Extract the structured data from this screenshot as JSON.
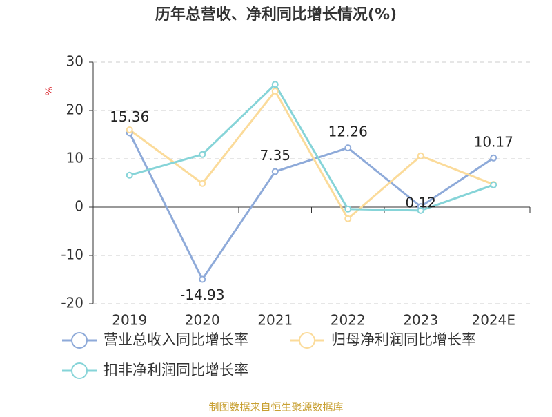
{
  "chart_data": {
    "type": "line",
    "title": "历年总营收、净利同比增长情况(%)",
    "y_label": "%",
    "categories": [
      "2019",
      "2020",
      "2021",
      "2022",
      "2023",
      "2024E"
    ],
    "series": [
      {
        "name": "营业总收入同比增长率",
        "color": "#8eaad9",
        "values": [
          15.36,
          -14.93,
          7.35,
          12.26,
          0.12,
          10.17
        ],
        "data_labels": true
      },
      {
        "name": "归母净利润同比增长率",
        "color": "#fbdb9a",
        "values": [
          16.0,
          4.9,
          24.0,
          -2.4,
          10.6,
          4.7
        ]
      },
      {
        "name": "扣非净利润同比增长率",
        "color": "#86d4d8",
        "values": [
          6.6,
          10.9,
          25.4,
          -0.4,
          -0.7,
          4.6
        ]
      }
    ],
    "ylim": [
      -20,
      30
    ],
    "yticks": [
      -20,
      -10,
      0,
      10,
      20,
      30
    ],
    "grid": true,
    "source": "制图数据来自恒生聚源数据库"
  }
}
